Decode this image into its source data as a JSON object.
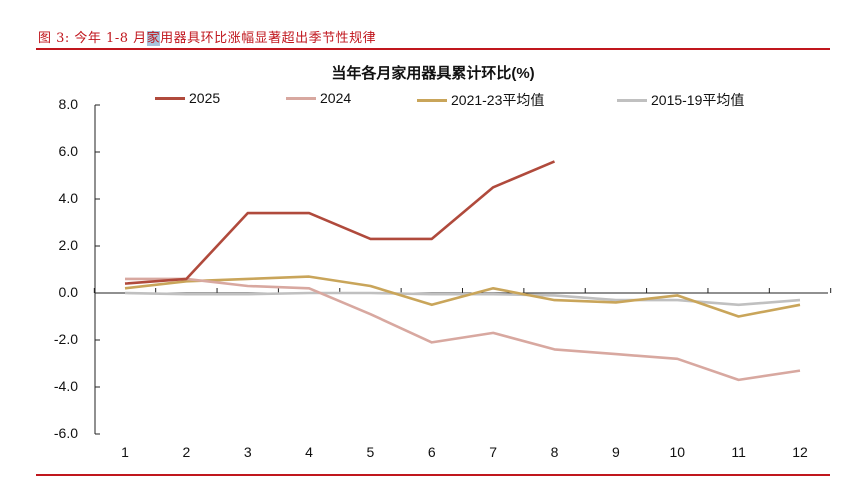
{
  "figure": {
    "caption_prefix": "图 3: 今年 1-8 月",
    "caption_highlight": "家",
    "caption_suffix": "用器具环比涨幅显著超出季节性规律",
    "accent_color": "#c0161d"
  },
  "chart_data": {
    "type": "line",
    "title": "当年各月家用器具累计环比(%)",
    "xlabel": "",
    "ylabel": "",
    "x": [
      "1",
      "2",
      "3",
      "4",
      "5",
      "6",
      "7",
      "8",
      "9",
      "10",
      "11",
      "12"
    ],
    "ylim": [
      -6.0,
      8.0
    ],
    "yticks": [
      "8.0",
      "6.0",
      "4.0",
      "2.0",
      "0.0",
      "-2.0",
      "-4.0",
      "-6.0"
    ],
    "grid": false,
    "legend_position": "top",
    "series": [
      {
        "name": "2025",
        "color": "#b04a3c",
        "values": [
          0.4,
          0.6,
          3.4,
          3.4,
          2.3,
          2.3,
          4.5,
          5.6,
          null,
          null,
          null,
          null
        ]
      },
      {
        "name": "2024",
        "color": "#d8a8a0",
        "values": [
          0.6,
          0.6,
          0.3,
          0.2,
          -0.9,
          -2.1,
          -1.7,
          -2.4,
          -2.6,
          -2.8,
          -3.7,
          -3.3
        ]
      },
      {
        "name": "2021-23平均值",
        "color": "#c9a55a",
        "values": [
          0.2,
          0.5,
          0.6,
          0.7,
          0.3,
          -0.5,
          0.2,
          -0.3,
          -0.4,
          -0.1,
          -1.0,
          -0.5
        ]
      },
      {
        "name": "2015-19平均值",
        "color": "#c0c0c0",
        "values": [
          0.0,
          -0.05,
          -0.05,
          0.0,
          0.0,
          -0.05,
          -0.05,
          -0.1,
          -0.3,
          -0.3,
          -0.5,
          -0.3
        ]
      }
    ]
  }
}
